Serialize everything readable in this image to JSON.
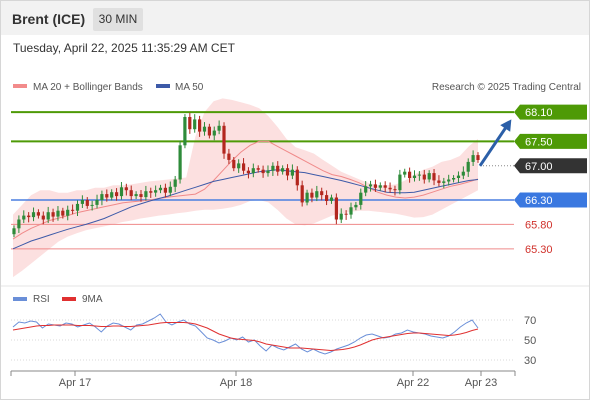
{
  "header": {
    "instrument": "Brent (ICE)",
    "timeframe": "30 MIN"
  },
  "datetime": "Tuesday, April 22, 2025 11:35:29 AM CET",
  "legend": {
    "ma20_label": "MA 20 + Bollinger Bands",
    "ma50_label": "MA 50",
    "credit": "Research © 2025 Trading Central",
    "rsi_label": "RSI",
    "ma9_label": "9MA"
  },
  "colors": {
    "up": "#2e8b3a",
    "down": "#b3261e",
    "ma20": "#f08a8a",
    "ma50": "#3d5aa8",
    "bollinger": "#fbd5d5",
    "resistance": "#4e9a06",
    "support": "#ef8a8a",
    "pivot": "#4a7fe0",
    "current": "#333333",
    "rsi": "#6a8fd8",
    "ma9": "#e03030"
  },
  "chart_data": [
    {
      "type": "candlestick",
      "title": "Brent (ICE) 30 MIN",
      "x_tick_labels": [
        "Apr 17",
        "Apr 18",
        "Apr 22",
        "Apr 23"
      ],
      "ylim": [
        64.6,
        68.45
      ],
      "levels": [
        {
          "value": 68.1,
          "label": "68.10",
          "kind": "resistance"
        },
        {
          "value": 67.5,
          "label": "67.50",
          "kind": "resistance"
        },
        {
          "value": 67.0,
          "label": "67.00",
          "kind": "current"
        },
        {
          "value": 66.3,
          "label": "66.30",
          "kind": "pivot"
        },
        {
          "value": 65.8,
          "label": "65.80",
          "kind": "support"
        },
        {
          "value": 65.3,
          "label": "65.30",
          "kind": "support"
        }
      ],
      "candles_close": [
        65.72,
        65.9,
        65.98,
        65.95,
        66.05,
        65.98,
        65.9,
        66.05,
        65.96,
        66.08,
        65.98,
        66.1,
        66.08,
        66.22,
        66.3,
        66.18,
        66.2,
        66.3,
        66.42,
        66.35,
        66.46,
        66.38,
        66.56,
        66.5,
        66.38,
        66.42,
        66.36,
        66.48,
        66.45,
        66.5,
        66.55,
        66.45,
        66.57,
        66.72,
        67.42,
        68.0,
        67.75,
        67.95,
        67.7,
        67.8,
        67.62,
        67.72,
        67.82,
        67.25,
        67.12,
        66.95,
        67.05,
        66.9,
        66.85,
        66.95,
        66.92,
        66.85,
        66.9,
        67.0,
        66.88,
        66.95,
        66.8,
        66.92,
        66.6,
        66.25,
        66.45,
        66.35,
        66.48,
        66.4,
        66.28,
        66.35,
        65.9,
        66.02,
        66.0,
        66.15,
        66.2,
        66.45,
        66.58,
        66.62,
        66.55,
        66.6,
        66.55,
        66.52,
        66.5,
        66.82,
        66.88,
        66.75,
        66.8,
        66.82,
        66.72,
        66.85,
        66.7,
        66.65,
        66.68,
        66.72,
        66.75,
        66.8,
        66.88,
        67.08,
        67.22,
        67.12
      ],
      "ma20": [
        65.5,
        65.62,
        65.72,
        65.8,
        65.88,
        65.93,
        65.98,
        66.04,
        66.08,
        66.12,
        66.16,
        66.2,
        66.24,
        66.26,
        66.28,
        66.3,
        66.33,
        66.36,
        66.38,
        66.4,
        66.42,
        66.52,
        66.7,
        66.9,
        67.1,
        67.28,
        67.42,
        67.5,
        67.5,
        67.4,
        67.3,
        67.2,
        67.1,
        67.0,
        66.9,
        66.82,
        66.78,
        66.72,
        66.65,
        66.55,
        66.46,
        66.4,
        66.36,
        66.34,
        66.36,
        66.4,
        66.46,
        66.52,
        66.58,
        66.62,
        66.67,
        66.73
      ],
      "bb_upper": [
        66.0,
        66.2,
        66.4,
        66.5,
        66.5,
        66.45,
        66.45,
        66.5,
        66.5,
        66.55,
        66.55,
        66.6,
        66.6,
        66.62,
        66.65,
        66.68,
        66.7,
        66.72,
        66.74,
        66.76,
        67.6,
        68.1,
        68.32,
        68.38,
        68.35,
        68.3,
        68.25,
        68.18,
        68.02,
        67.8,
        67.55,
        67.38,
        67.32,
        67.25,
        67.12,
        67.0,
        66.88,
        66.8,
        66.72,
        66.65,
        66.6,
        66.6,
        66.62,
        66.7,
        66.82,
        66.92,
        66.98,
        67.08,
        67.12,
        67.2,
        67.4,
        67.55
      ],
      "bb_lower": [
        64.72,
        64.85,
        65.0,
        65.15,
        65.3,
        65.45,
        65.55,
        65.62,
        65.68,
        65.72,
        65.76,
        65.8,
        65.85,
        65.88,
        65.92,
        65.95,
        65.98,
        66.0,
        66.03,
        66.05,
        66.08,
        66.1,
        66.1,
        66.12,
        66.15,
        66.2,
        66.28,
        66.3,
        66.25,
        66.1,
        65.92,
        65.8,
        65.78,
        65.82,
        65.9,
        65.98,
        66.02,
        66.06,
        66.08,
        66.08,
        66.06,
        66.04,
        66.02,
        65.98,
        65.94,
        65.95,
        66.0,
        66.1,
        66.2,
        66.3,
        66.4,
        66.5
      ],
      "ma50": [
        65.3,
        65.38,
        65.46,
        65.52,
        65.58,
        65.64,
        65.7,
        65.75,
        65.8,
        65.86,
        65.92,
        66.0,
        66.08,
        66.16,
        66.22,
        66.28,
        66.33,
        66.38,
        66.44,
        66.5,
        66.56,
        66.62,
        66.68,
        66.72,
        66.76,
        66.8,
        66.84,
        66.88,
        66.9,
        66.92,
        66.9,
        66.88,
        66.86,
        66.82,
        66.78,
        66.74,
        66.7,
        66.65,
        66.6,
        66.55,
        66.5,
        66.46,
        66.45,
        66.45,
        66.46,
        66.5,
        66.54,
        66.58,
        66.62,
        66.66,
        66.7,
        66.72
      ],
      "forecast": "upward arrow toward 68.10"
    },
    {
      "type": "line",
      "title": "RSI",
      "y_ticks": [
        70,
        50,
        30
      ],
      "ylim": [
        20,
        80
      ],
      "series": [
        {
          "name": "RSI",
          "values": [
            63,
            68,
            67,
            69,
            68,
            62,
            66,
            65,
            64,
            67,
            66,
            63,
            65,
            67,
            63,
            58,
            64,
            67,
            66,
            63,
            60,
            65,
            66,
            69,
            72,
            76,
            68,
            65,
            68,
            70,
            66,
            64,
            58,
            52,
            50,
            47,
            49,
            52,
            50,
            53,
            48,
            50,
            44,
            39,
            45,
            42,
            40,
            43,
            46,
            41,
            38,
            41,
            38,
            36,
            38,
            41,
            43,
            45,
            48,
            52,
            55,
            56,
            54,
            52,
            53,
            56,
            57,
            60,
            58,
            57,
            56,
            54,
            53,
            52,
            54,
            58,
            63,
            67,
            70,
            62
          ]
        },
        {
          "name": "9MA",
          "values": [
            60,
            61,
            62,
            63,
            64,
            64.5,
            64.5,
            65,
            65,
            65,
            65,
            64.5,
            64.5,
            64.5,
            64,
            63.5,
            63.5,
            64,
            64,
            63.5,
            63.5,
            64,
            64.5,
            65,
            66,
            67,
            67.5,
            67.5,
            67.5,
            67.5,
            67,
            66,
            64,
            62,
            59,
            56,
            54,
            52,
            51,
            50.5,
            50,
            49.5,
            48,
            46,
            45,
            44,
            43,
            42,
            42,
            42,
            41.5,
            41,
            40.5,
            40,
            39.5,
            40,
            40.5,
            41.5,
            43,
            45,
            47.5,
            50,
            51.5,
            52.5,
            53.5,
            54.5,
            55.5,
            56.5,
            57,
            57,
            56.5,
            56,
            55.5,
            55,
            54.5,
            55,
            56,
            57.5,
            59.5,
            61
          ]
        }
      ]
    }
  ]
}
